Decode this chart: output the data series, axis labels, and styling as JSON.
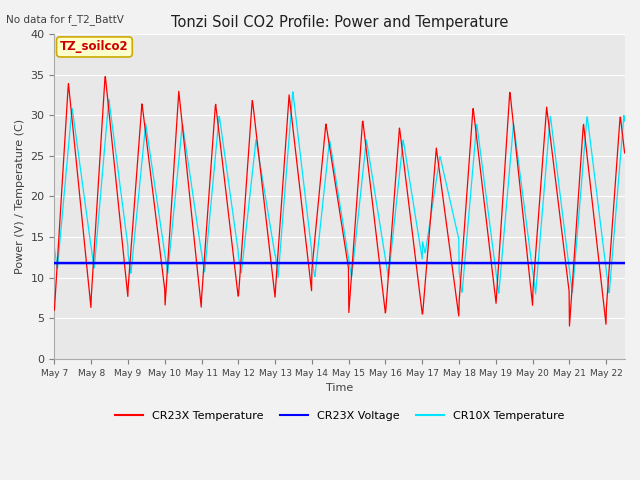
{
  "title": "Tonzi Soil CO2 Profile: Power and Temperature",
  "subtitle": "No data for f_T2_BattV",
  "ylabel": "Power (V) / Temperature (C)",
  "xlabel": "Time",
  "ylim": [
    0,
    40
  ],
  "yticks": [
    0,
    5,
    10,
    15,
    20,
    25,
    30,
    35,
    40
  ],
  "bg_color": "#e8e8e8",
  "cr23x_color": "#ff0000",
  "cr10x_color": "#00e5ff",
  "voltage_color": "#0000ff",
  "voltage_value": 11.8,
  "legend_label_cr23x": "CR23X Temperature",
  "legend_label_voltage": "CR23X Voltage",
  "legend_label_cr10x": "CR10X Temperature",
  "annotation_label": "TZ_soilco2",
  "x_tick_labels": [
    "May 7",
    "May 8",
    "May 9",
    "May 10",
    "May 11",
    "May 12",
    "May 13",
    "May 14",
    "May 15",
    "May 16",
    "May 17",
    "May 18",
    "May 19",
    "May 20",
    "May 21",
    "May 22"
  ],
  "fig_bg": "#f2f2f2"
}
